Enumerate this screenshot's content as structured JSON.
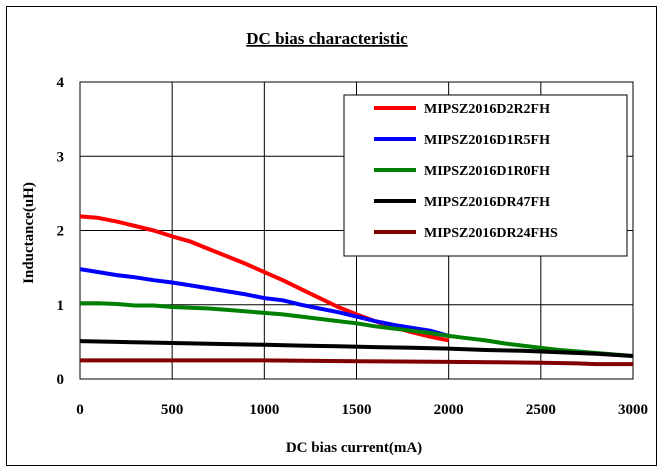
{
  "chart_data": {
    "type": "line",
    "title": "DC bias characteristic",
    "xlabel": "DC bias current(mA)",
    "ylabel": "Inductance(uH)",
    "xlim": [
      0,
      3000
    ],
    "ylim": [
      0,
      4
    ],
    "xticks": [
      "0",
      "500",
      "1000",
      "1500",
      "2000",
      "2500",
      "3000"
    ],
    "yticks": [
      "0",
      "1",
      "2",
      "3",
      "4"
    ],
    "grid": true,
    "legend_position": "top-right",
    "series": [
      {
        "name": "MIPSZ2016D2R2FH",
        "color": "#ff0000",
        "x": [
          0,
          100,
          200,
          300,
          400,
          500,
          600,
          700,
          800,
          900,
          1000,
          1100,
          1200,
          1300,
          1400,
          1500,
          1600,
          1700,
          1800,
          1900,
          2000
        ],
        "y": [
          2.19,
          2.17,
          2.12,
          2.06,
          2.0,
          1.92,
          1.85,
          1.75,
          1.65,
          1.55,
          1.44,
          1.33,
          1.21,
          1.09,
          0.97,
          0.87,
          0.78,
          0.7,
          0.63,
          0.57,
          0.52
        ]
      },
      {
        "name": "MIPSZ2016D1R5FH",
        "color": "#0000ff",
        "x": [
          0,
          100,
          200,
          300,
          400,
          500,
          600,
          700,
          800,
          900,
          1000,
          1100,
          1200,
          1300,
          1400,
          1500,
          1600,
          1700,
          1800,
          1900,
          2000
        ],
        "y": [
          1.48,
          1.44,
          1.4,
          1.37,
          1.33,
          1.3,
          1.26,
          1.22,
          1.18,
          1.14,
          1.09,
          1.06,
          1.0,
          0.95,
          0.9,
          0.84,
          0.78,
          0.73,
          0.69,
          0.65,
          0.58
        ]
      },
      {
        "name": "MIPSZ2016D1R0FH",
        "color": "#008000",
        "x": [
          0,
          100,
          200,
          300,
          400,
          500,
          600,
          700,
          800,
          900,
          1000,
          1100,
          1200,
          1300,
          1400,
          1500,
          1600,
          1700,
          1800,
          1900,
          2000,
          2100,
          2200,
          2300,
          2400,
          2500,
          2600,
          2700,
          2800,
          2900,
          3000
        ],
        "y": [
          1.02,
          1.02,
          1.01,
          0.99,
          0.99,
          0.97,
          0.96,
          0.95,
          0.93,
          0.91,
          0.89,
          0.87,
          0.84,
          0.81,
          0.78,
          0.75,
          0.71,
          0.68,
          0.65,
          0.62,
          0.58,
          0.55,
          0.52,
          0.48,
          0.45,
          0.42,
          0.39,
          0.37,
          0.35,
          0.33,
          0.31
        ]
      },
      {
        "name": "MIPSZ2016DR47FH",
        "color": "#000000",
        "x": [
          0,
          200,
          400,
          600,
          800,
          1000,
          1200,
          1400,
          1600,
          1800,
          2000,
          2200,
          2400,
          2600,
          2800,
          3000
        ],
        "y": [
          0.51,
          0.5,
          0.49,
          0.48,
          0.47,
          0.46,
          0.45,
          0.44,
          0.43,
          0.42,
          0.41,
          0.39,
          0.38,
          0.36,
          0.34,
          0.31
        ]
      },
      {
        "name": "MIPSZ2016DR24FHS",
        "color": "#800000",
        "x": [
          0,
          500,
          1000,
          1500,
          2000,
          2500,
          2700,
          2800,
          3000
        ],
        "y": [
          0.25,
          0.25,
          0.25,
          0.24,
          0.23,
          0.22,
          0.21,
          0.2,
          0.2
        ]
      }
    ]
  }
}
